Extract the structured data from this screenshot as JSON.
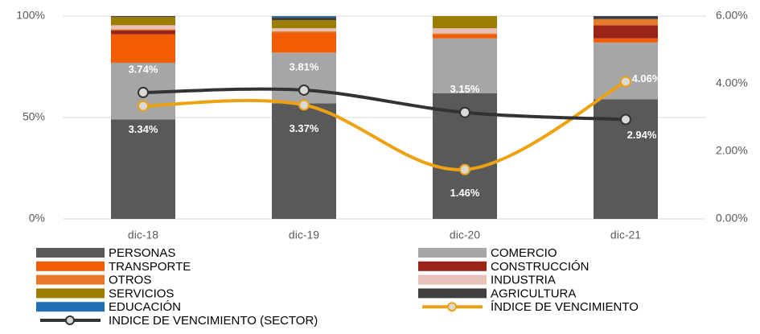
{
  "chart_data": {
    "type": "bar",
    "categories": [
      "dic-18",
      "dic-19",
      "dic-20",
      "dic-21"
    ],
    "stacked": true,
    "ylim": [
      0,
      100
    ],
    "yticks": [
      {
        "value": 0,
        "label": "0%"
      },
      {
        "value": 50,
        "label": "50%"
      },
      {
        "value": 100,
        "label": "100%"
      }
    ],
    "y2lim": [
      0,
      6
    ],
    "y2ticks": [
      {
        "value": 0,
        "label": "0.00%"
      },
      {
        "value": 2,
        "label": "2.00%"
      },
      {
        "value": 4,
        "label": "4.00%"
      },
      {
        "value": 6,
        "label": "6.00%"
      }
    ],
    "grid": true,
    "legend": "bottom",
    "series": [
      {
        "name": "PERSONAS",
        "color": "#595959",
        "values": [
          49,
          57,
          62,
          59
        ]
      },
      {
        "name": "COMERCIO",
        "color": "#a6a6a6",
        "values": [
          28,
          25,
          27,
          28
        ]
      },
      {
        "name": "TRANSPORTE",
        "color": "#f25c05",
        "values": [
          14,
          10,
          2,
          2
        ]
      },
      {
        "name": "CONSTRUCCIÓN",
        "color": "#9b2418",
        "values": [
          2,
          0,
          0,
          6.5
        ]
      },
      {
        "name": "OTROS",
        "color": "#e8792a",
        "values": [
          0.5,
          0.5,
          0.5,
          3
        ]
      },
      {
        "name": "INDUSTRIA",
        "color": "#e8c0b8",
        "values": [
          2,
          1.5,
          2.5,
          0
        ]
      },
      {
        "name": "SERVICIOS",
        "color": "#9c7d00",
        "values": [
          4,
          4,
          6,
          0
        ]
      },
      {
        "name": "AGRICULTURA",
        "color": "#404040",
        "values": [
          0.5,
          1.5,
          0,
          1.5
        ]
      },
      {
        "name": "EDUCACIÓN",
        "color": "#1f6fb5",
        "values": [
          0,
          0.5,
          0,
          0
        ]
      },
      {
        "name": "ÍNDICE DE VENCIMIENTO",
        "type": "line",
        "axis": "y2",
        "color": "#eea212",
        "values": [
          3.34,
          3.37,
          1.46,
          4.06
        ],
        "value_labels": [
          "3.34%",
          "3.37%",
          "1.46%",
          "4.06%"
        ]
      },
      {
        "name": "INDICE DE VENCIMIENTO (SECTOR)",
        "type": "line",
        "axis": "y2",
        "color": "#333333",
        "values": [
          3.74,
          3.81,
          3.15,
          2.94
        ],
        "value_labels": [
          "3.74%",
          "3.81%",
          "3.15%",
          "2.94%"
        ]
      }
    ]
  }
}
